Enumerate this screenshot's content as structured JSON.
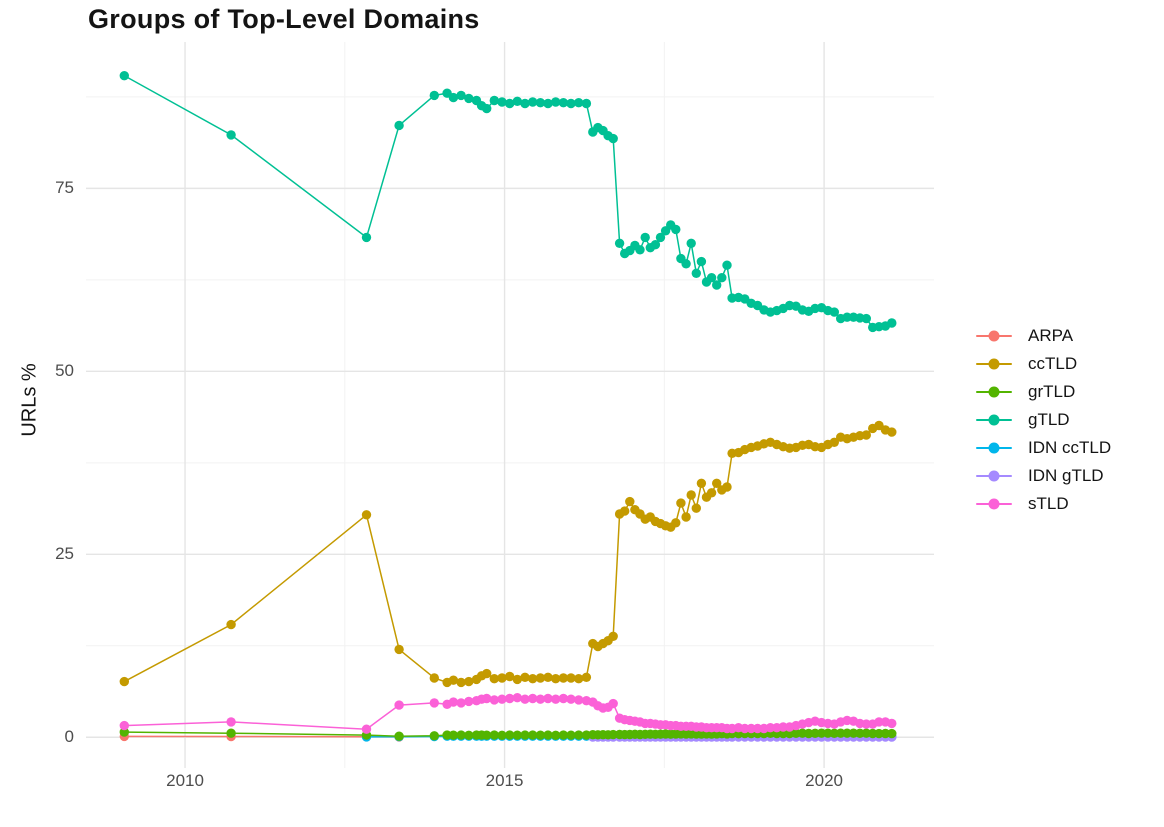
{
  "title": "Groups of Top-Level Domains",
  "axes": {
    "ylabel": "URLs %",
    "y_ticks": [
      0,
      25,
      50,
      75
    ],
    "y_minor": [
      12.5,
      37.5,
      62.5,
      87.5
    ],
    "x_ticks": [
      2010,
      2015,
      2020
    ],
    "x_minor": [
      2012.5,
      2017.5
    ],
    "xlim": [
      2008.45,
      2021.72
    ],
    "ylim": [
      -4.2,
      95
    ]
  },
  "legend": {
    "items": [
      "ARPA",
      "ccTLD",
      "grTLD",
      "gTLD",
      "IDN ccTLD",
      "IDN gTLD",
      "sTLD"
    ]
  },
  "chart_data": {
    "type": "line",
    "title": "Groups of Top-Level Domains",
    "xlabel": "",
    "ylabel": "URLs %",
    "xlim": [
      2008.45,
      2021.72
    ],
    "ylim": [
      -4.2,
      95
    ],
    "grid": true,
    "legend_position": "right",
    "draw_order": [
      "ARPA",
      "ccTLD",
      "IDN ccTLD",
      "IDN gTLD",
      "grTLD",
      "gTLD",
      "sTLD"
    ],
    "x_dense": [
      2014.1,
      2014.2,
      2014.32,
      2014.44,
      2014.56,
      2014.64,
      2014.72,
      2014.84,
      2014.96,
      2015.08,
      2015.2,
      2015.32,
      2015.44,
      2015.56,
      2015.68,
      2015.8,
      2015.92,
      2016.04,
      2016.16,
      2016.28,
      2016.38,
      2016.46,
      2016.54,
      2016.62,
      2016.7,
      2016.8,
      2016.88,
      2016.96,
      2017.04,
      2017.12,
      2017.2,
      2017.28,
      2017.36,
      2017.44,
      2017.52,
      2017.6,
      2017.68,
      2017.76,
      2017.84,
      2017.92,
      2018.0,
      2018.08,
      2018.16,
      2018.24,
      2018.32,
      2018.4,
      2018.48,
      2018.56,
      2018.66,
      2018.76,
      2018.86,
      2018.96,
      2019.06,
      2019.16,
      2019.26,
      2019.36,
      2019.46,
      2019.56,
      2019.66,
      2019.76,
      2019.86,
      2019.96,
      2020.06,
      2020.16,
      2020.26,
      2020.36,
      2020.46,
      2020.56,
      2020.66,
      2020.76,
      2020.86,
      2020.96,
      2021.06
    ],
    "series": [
      {
        "name": "ARPA",
        "color": "#F8766D",
        "early": [
          [
            2009.05,
            0.12
          ],
          [
            2010.72,
            0.1
          ],
          [
            2012.84,
            0.06
          ],
          [
            2013.35,
            0.05
          ]
        ]
      },
      {
        "name": "ccTLD",
        "color": "#C49A00",
        "early": [
          [
            2009.05,
            7.6
          ],
          [
            2010.72,
            15.4
          ],
          [
            2012.84,
            30.4
          ],
          [
            2013.35,
            12.0
          ],
          [
            2013.9,
            8.1
          ]
        ],
        "y_dense": [
          7.5,
          7.8,
          7.5,
          7.6,
          7.9,
          8.4,
          8.7,
          8.0,
          8.1,
          8.3,
          7.9,
          8.2,
          8.0,
          8.1,
          8.2,
          8.0,
          8.1,
          8.1,
          8.0,
          8.2,
          12.8,
          12.4,
          12.8,
          13.2,
          13.8,
          30.5,
          30.9,
          32.2,
          31.1,
          30.5,
          29.8,
          30.1,
          29.5,
          29.2,
          28.9,
          28.7,
          29.3,
          32.0,
          30.1,
          33.1,
          31.3,
          34.7,
          32.8,
          33.4,
          34.7,
          33.8,
          34.2,
          38.8,
          38.9,
          39.3,
          39.6,
          39.8,
          40.1,
          40.3,
          40.0,
          39.7,
          39.5,
          39.6,
          39.9,
          40.0,
          39.7,
          39.6,
          40.0,
          40.3,
          41.0,
          40.8,
          41.0,
          41.2,
          41.3,
          42.2,
          42.6,
          42.0,
          41.7
        ]
      },
      {
        "name": "grTLD",
        "color": "#53B400",
        "early": [
          [
            2009.05,
            0.7
          ],
          [
            2010.72,
            0.55
          ],
          [
            2012.84,
            0.3
          ],
          [
            2013.35,
            0.15
          ],
          [
            2013.9,
            0.2
          ]
        ],
        "y_dense": [
          0.3,
          0.28,
          0.3,
          0.27,
          0.3,
          0.29,
          0.28,
          0.3,
          0.27,
          0.3,
          0.28,
          0.3,
          0.29,
          0.28,
          0.3,
          0.27,
          0.3,
          0.28,
          0.3,
          0.3,
          0.35,
          0.33,
          0.35,
          0.34,
          0.36,
          0.38,
          0.36,
          0.38,
          0.4,
          0.38,
          0.4,
          0.42,
          0.4,
          0.42,
          0.44,
          0.42,
          0.44,
          0.46,
          0.44,
          0.46,
          0.45,
          0.44,
          0.46,
          0.45,
          0.46,
          0.48,
          0.46,
          0.5,
          0.48,
          0.5,
          0.52,
          0.5,
          0.52,
          0.54,
          0.52,
          0.5,
          0.52,
          0.54,
          0.55,
          0.52,
          0.54,
          0.55,
          0.56,
          0.54,
          0.55,
          0.56,
          0.55,
          0.54,
          0.55,
          0.52,
          0.5,
          0.52,
          0.5
        ]
      },
      {
        "name": "gTLD",
        "color": "#00C094",
        "early": [
          [
            2009.05,
            90.4
          ],
          [
            2010.72,
            82.3
          ],
          [
            2012.84,
            68.3
          ],
          [
            2013.35,
            83.6
          ],
          [
            2013.9,
            87.7
          ]
        ],
        "y_dense": [
          88.0,
          87.4,
          87.7,
          87.3,
          87.0,
          86.3,
          85.9,
          87.0,
          86.8,
          86.6,
          86.9,
          86.6,
          86.8,
          86.7,
          86.6,
          86.8,
          86.7,
          86.6,
          86.7,
          86.6,
          82.7,
          83.3,
          82.9,
          82.2,
          81.8,
          67.5,
          66.1,
          66.5,
          67.2,
          66.6,
          68.3,
          66.9,
          67.3,
          68.3,
          69.2,
          70.0,
          69.4,
          65.4,
          64.7,
          67.5,
          63.4,
          65.0,
          62.2,
          62.8,
          61.8,
          62.8,
          64.5,
          60.0,
          60.1,
          59.9,
          59.3,
          59.0,
          58.4,
          58.1,
          58.3,
          58.6,
          59.0,
          58.9,
          58.4,
          58.2,
          58.6,
          58.7,
          58.3,
          58.1,
          57.2,
          57.4,
          57.4,
          57.3,
          57.2,
          56.0,
          56.1,
          56.2,
          56.6
        ]
      },
      {
        "name": "IDN ccTLD",
        "color": "#00B6EB",
        "early": [
          [
            2012.84,
            0.05
          ],
          [
            2013.35,
            0.08
          ],
          [
            2013.9,
            0.1
          ]
        ],
        "y_dense": [
          0.15,
          0.15,
          0.15,
          0.15,
          0.15,
          0.15,
          0.15,
          0.15,
          0.15,
          0.15,
          0.15,
          0.15,
          0.15,
          0.15,
          0.15,
          0.15,
          0.15,
          0.15,
          0.15,
          0.15,
          0.1,
          0.1,
          0.1,
          0.1,
          0.1,
          0.1,
          0.1,
          0.1,
          0.1,
          0.1,
          0.1,
          0.1,
          0.1,
          0.1,
          0.1,
          0.1,
          0.1,
          0.1,
          0.1,
          0.1,
          0.1,
          0.1,
          0.1,
          0.1,
          0.1,
          0.1,
          0.1,
          0.1,
          0.1,
          0.1,
          0.1,
          0.1,
          0.1,
          0.1,
          0.1,
          0.1,
          0.1,
          0.1,
          0.1,
          0.1,
          0.1,
          0.1,
          0.1,
          0.1,
          0.1,
          0.1,
          0.1,
          0.1,
          0.1,
          0.1,
          0.1,
          0.1,
          0.1
        ]
      },
      {
        "name": "IDN gTLD",
        "color": "#A58AFF",
        "early": [],
        "x_start_index": 20,
        "y_dense": [
          0.02,
          0.02,
          0.02,
          0.02,
          0.02,
          0.02,
          0.02,
          0.02,
          0.02,
          0.02,
          0.02,
          0.02,
          0.02,
          0.02,
          0.02,
          0.02,
          0.02,
          0.02,
          0.02,
          0.02,
          0.02,
          0.02,
          0.02,
          0.02,
          0.02,
          0.02,
          0.02,
          0.02,
          0.02,
          0.02,
          0.02,
          0.02,
          0.02,
          0.02,
          0.02,
          0.02,
          0.02,
          0.02,
          0.02,
          0.02,
          0.02,
          0.02,
          0.02,
          0.02,
          0.02,
          0.02,
          0.02,
          0.02,
          0.02,
          0.02,
          0.02,
          0.02,
          0.02
        ]
      },
      {
        "name": "sTLD",
        "color": "#FB61D7",
        "early": [
          [
            2009.05,
            1.6
          ],
          [
            2010.72,
            2.1
          ],
          [
            2012.84,
            1.1
          ],
          [
            2013.35,
            4.4
          ],
          [
            2013.9,
            4.7
          ]
        ],
        "y_dense": [
          4.5,
          4.8,
          4.7,
          4.9,
          5.0,
          5.2,
          5.3,
          5.1,
          5.2,
          5.3,
          5.4,
          5.2,
          5.3,
          5.2,
          5.3,
          5.2,
          5.3,
          5.2,
          5.1,
          5.0,
          4.8,
          4.3,
          4.0,
          4.1,
          4.6,
          2.6,
          2.4,
          2.3,
          2.2,
          2.1,
          1.9,
          1.9,
          1.8,
          1.7,
          1.7,
          1.6,
          1.6,
          1.5,
          1.5,
          1.5,
          1.4,
          1.4,
          1.3,
          1.3,
          1.3,
          1.3,
          1.2,
          1.2,
          1.3,
          1.2,
          1.2,
          1.2,
          1.2,
          1.3,
          1.3,
          1.4,
          1.4,
          1.6,
          1.8,
          2.0,
          2.2,
          2.0,
          1.9,
          1.8,
          2.1,
          2.3,
          2.2,
          1.9,
          1.8,
          1.8,
          2.1,
          2.1,
          1.9
        ]
      }
    ]
  }
}
